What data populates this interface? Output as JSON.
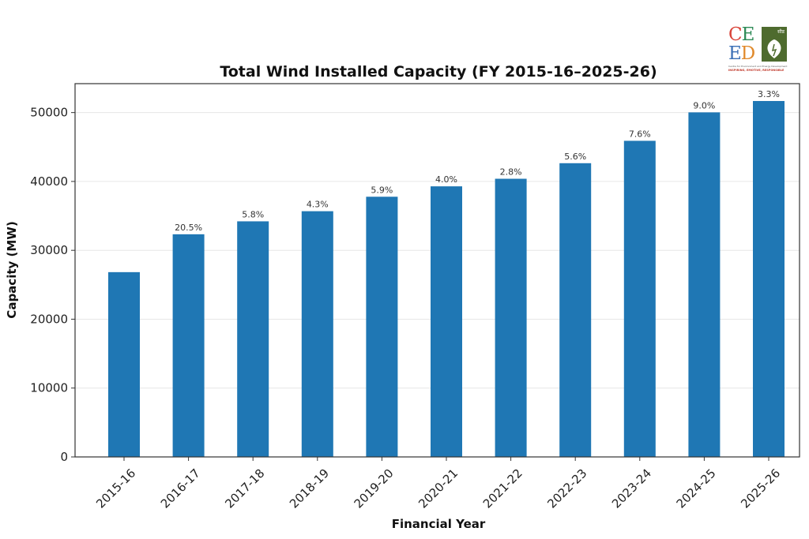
{
  "logo": {
    "letters": [
      "C",
      "E",
      "E",
      "D"
    ],
    "letter_colors": [
      "#d9453a",
      "#2e8b57",
      "#3b6fb6",
      "#e08a2c"
    ],
    "hindi_text": "सीड",
    "subtitle": "Centre for Environment and Energy Development",
    "tagline": "INSPIRING, EMOTIVE, RESPONSIBLE",
    "box_color": "#4e6b2e"
  },
  "chart_data": {
    "type": "bar",
    "title": "Total Wind Installed Capacity (FY 2015-16–2025-26)",
    "xlabel": "Financial Year",
    "ylabel": "Capacity (MW)",
    "ylim": [
      0,
      54200
    ],
    "yticks": [
      0,
      10000,
      20000,
      30000,
      40000,
      50000
    ],
    "grid": "y",
    "bar_color": "#1f77b4",
    "categories": [
      "2015-16",
      "2016-17",
      "2017-18",
      "2018-19",
      "2019-20",
      "2020-21",
      "2021-22",
      "2022-23",
      "2023-24",
      "2024-25",
      "2025-26"
    ],
    "values": [
      26830,
      32330,
      34210,
      35680,
      37780,
      39290,
      40390,
      42650,
      45900,
      50030,
      51680
    ],
    "data_labels": [
      "",
      "20.5%",
      "5.8%",
      "4.3%",
      "5.9%",
      "4.0%",
      "2.8%",
      "5.6%",
      "7.6%",
      "9.0%",
      "3.3%"
    ],
    "xtick_rotation_deg": 45
  }
}
